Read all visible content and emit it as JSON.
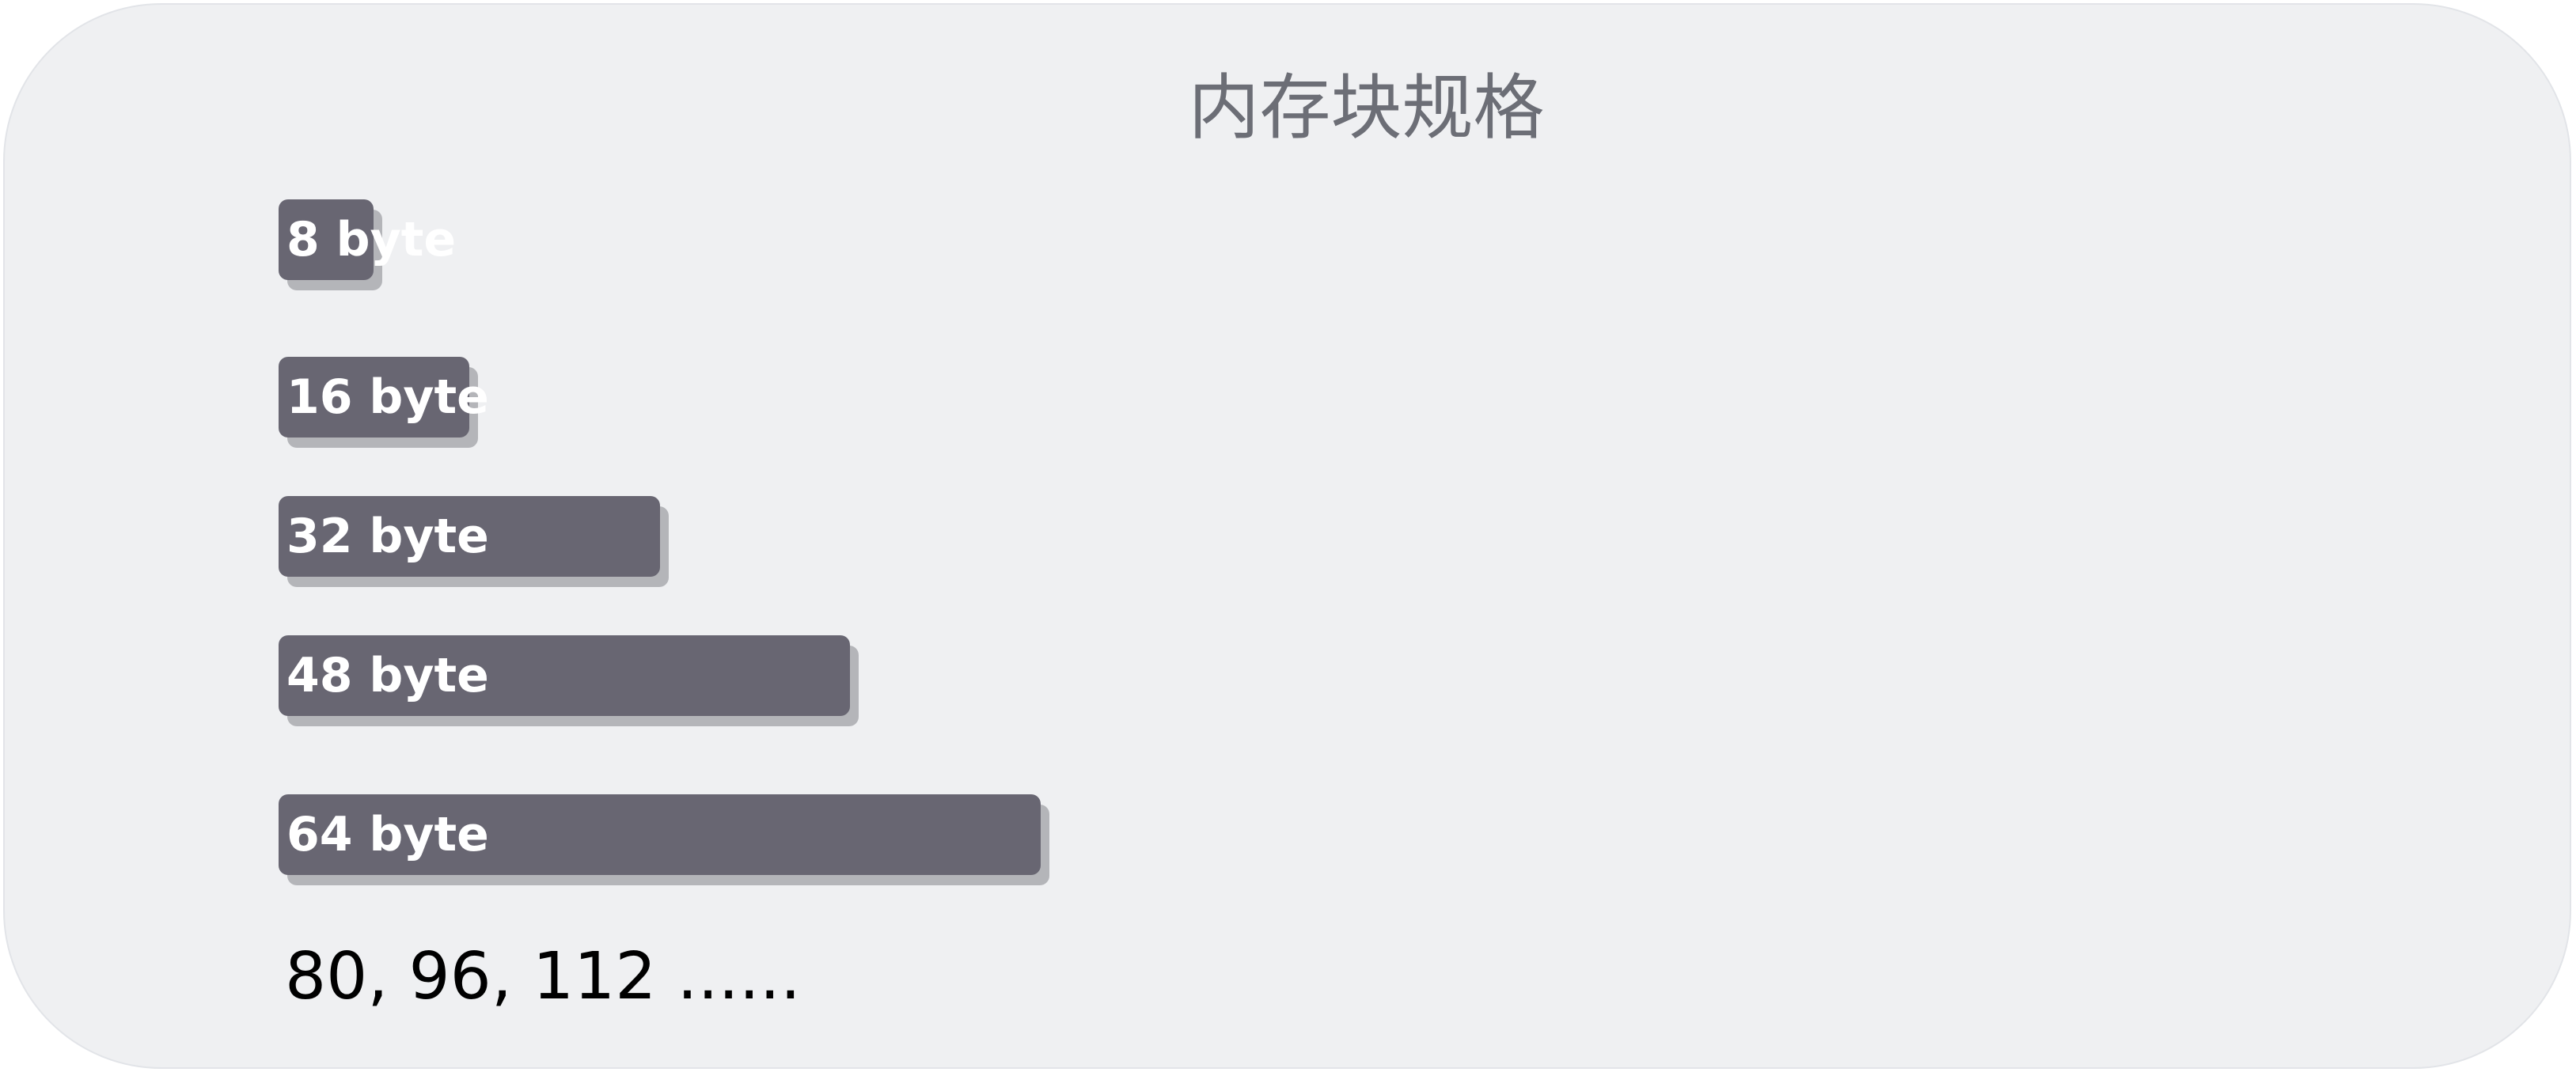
{
  "title": "内存块规格",
  "blocks": [
    {
      "label": "8 byte",
      "size": 8
    },
    {
      "label": "16 byte",
      "size": 16
    },
    {
      "label": "32 byte",
      "size": 32
    },
    {
      "label": "48 byte",
      "size": 48
    },
    {
      "label": "64 byte",
      "size": 64
    }
  ],
  "more_text": "80, 96, 112 ......",
  "colors": {
    "panel_bg": "#eff0f2",
    "bar_fill": "#686672",
    "bar_shadow": "#b4b5b9",
    "title_text": "#6c6e76",
    "bar_text": "#ffffff"
  }
}
